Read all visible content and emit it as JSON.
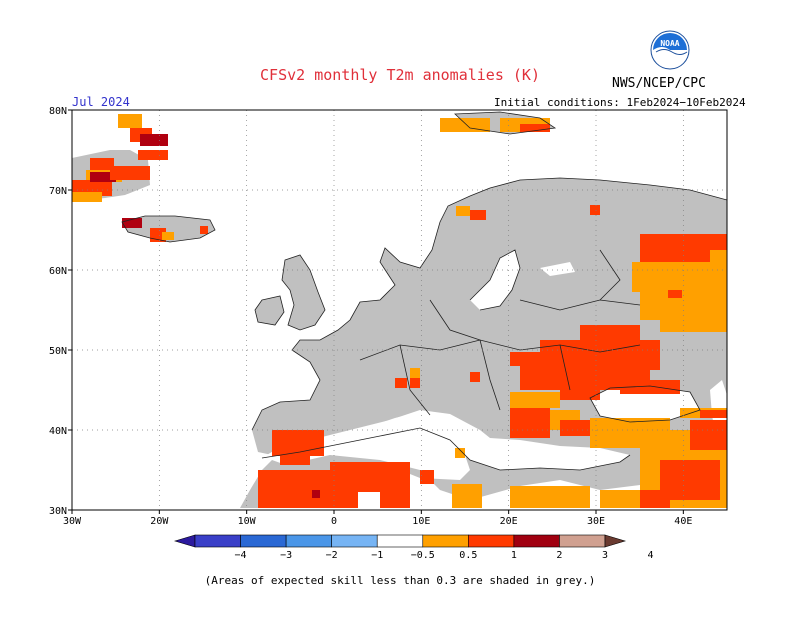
{
  "title": "CFSv2 monthly T2m anomalies (K)",
  "agency": "NWS/NCEP/CPC",
  "logo_text": "NOAA",
  "forecast_month": "Jul 2024",
  "initial_conditions": "Initial conditions: 1Feb2024−10Feb2024",
  "lat_labels": [
    "80N",
    "70N",
    "60N",
    "50N",
    "40N",
    "30N"
  ],
  "lon_labels": [
    "30W",
    "20W",
    "10W",
    "0",
    "10E",
    "20E",
    "30E",
    "40E"
  ],
  "legend": {
    "labels": [
      "−4",
      "−3",
      "−2",
      "−1",
      "−0.5",
      "0.5",
      "1",
      "2",
      "3",
      "4"
    ],
    "colors": [
      "#2c1a9e",
      "#3a3fc8",
      "#2a68d4",
      "#4a96e8",
      "#76b4f4",
      "#ffffff",
      "#ffa000",
      "#ff3a00",
      "#a00010",
      "#d0a090",
      "#6a3a30"
    ]
  },
  "note": "(Areas of expected skill less than 0.3 are shaded in grey.)",
  "colors": {
    "grey": "#c0c0c0",
    "ocean": "#ffffff",
    "orange": "#ffa000",
    "red": "#ff3a00",
    "darkred": "#b00010",
    "title": "#e0303a"
  }
}
